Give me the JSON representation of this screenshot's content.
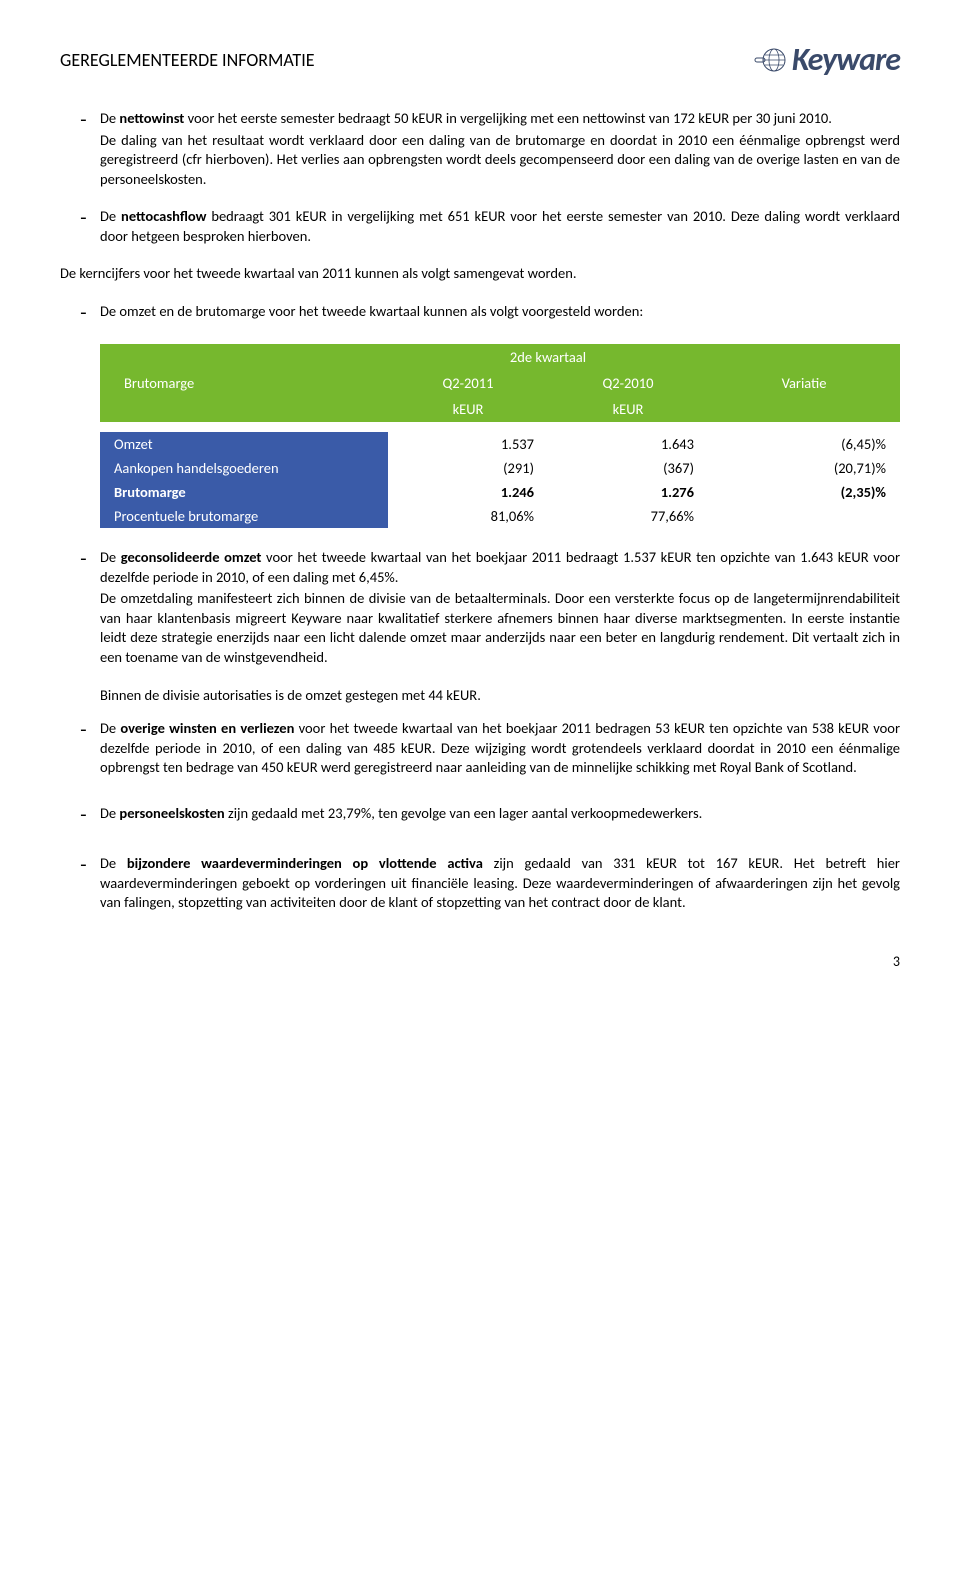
{
  "header": {
    "title": "GEREGLEMENTEERDE INFORMATIE",
    "logo_text": "Keyware"
  },
  "bullets": {
    "b1a": "De ",
    "b1b": "nettowinst",
    "b1c": " voor het eerste semester bedraagt 50 kEUR in vergelijking met een nettowinst van 172 kEUR per 30 juni 2010.",
    "b1d": "De daling van het resultaat wordt verklaard door een daling van de brutomarge en doordat in 2010 een éénmalige opbrengst werd geregistreerd (cfr hierboven). Het verlies aan opbrengsten wordt deels gecompenseerd door een daling van de overige lasten en van de personeelskosten.",
    "b2a": "De ",
    "b2b": "nettocashflow",
    "b2c": " bedraagt 301 kEUR in vergelijking met 651 kEUR voor het eerste semester van 2010. Deze daling wordt verklaard door hetgeen besproken hierboven."
  },
  "mid": "De kerncijfers voor het tweede kwartaal van 2011 kunnen als volgt samengevat worden.",
  "b3": "De omzet en de brutomarge voor het tweede kwartaal kunnen als volgt voorgesteld worden:",
  "table": {
    "header_bg": "#76b82e",
    "label_bg": "#3a5ba8",
    "top": "2de kwartaal",
    "left_label": "Brutomarge",
    "col1": "Q2-2011",
    "col2": "Q2-2010",
    "col3": "Variatie",
    "unit": "kEUR",
    "rows": [
      {
        "label": "Omzet",
        "v1": "1.537",
        "v2": "1.643",
        "v3": "(6,45)%",
        "bold": false
      },
      {
        "label": "Aankopen handelsgoederen",
        "v1": "(291)",
        "v2": "(367)",
        "v3": "(20,71)%",
        "bold": false
      },
      {
        "label": "Brutomarge",
        "v1": "1.246",
        "v2": "1.276",
        "v3": "(2,35)%",
        "bold": true
      },
      {
        "label": "Procentuele brutomarge",
        "v1": "81,06%",
        "v2": "77,66%",
        "v3": "",
        "bold": false
      }
    ]
  },
  "b4": {
    "p1a": "De ",
    "p1b": "geconsolideerde omzet",
    "p1c": " voor het tweede kwartaal van het boekjaar 2011 bedraagt 1.537 kEUR ten opzichte van 1.643 kEUR voor dezelfde periode in 2010, of een daling met 6,45%.",
    "p2": "De omzetdaling manifesteert zich binnen de divisie van de betaalterminals. Door een versterkte focus op de langetermijnrendabiliteit van haar klantenbasis migreert Keyware naar kwalitatief sterkere afnemers binnen haar diverse marktsegmenten. In eerste instantie leidt deze strategie enerzijds naar een licht dalende omzet maar anderzijds naar een beter en langdurig rendement. Dit vertaalt zich in een toename van de winstgevendheid.",
    "p3": "Binnen de divisie autorisaties is de omzet gestegen met 44 kEUR."
  },
  "b5a": "De ",
  "b5b": "overige winsten en verliezen",
  "b5c": " voor het tweede kwartaal van het boekjaar 2011 bedragen 53 kEUR ten opzichte van 538 kEUR voor dezelfde periode in 2010, of een daling van 485 kEUR. Deze wijziging wordt grotendeels verklaard doordat in 2010 een éénmalige opbrengst ten bedrage van 450 kEUR werd geregistreerd naar aanleiding van de minnelijke schikking met Royal Bank of Scotland.",
  "b6a": "De ",
  "b6b": "personeelskosten",
  "b6c": " zijn gedaald met 23,79%, ten gevolge van een lager aantal verkoopmedewerkers.",
  "b7a": "De ",
  "b7b": "bijzondere waardeverminderingen op vlottende activa",
  "b7c": " zijn gedaald van 331 kEUR tot 167 kEUR. Het betreft hier waardeverminderingen geboekt op vorderingen uit financiële leasing. Deze waardeverminderingen of afwaarderingen zijn het gevolg van falingen, stopzetting van activiteiten door de klant of stopzetting van het contract door de klant.",
  "page": "3"
}
